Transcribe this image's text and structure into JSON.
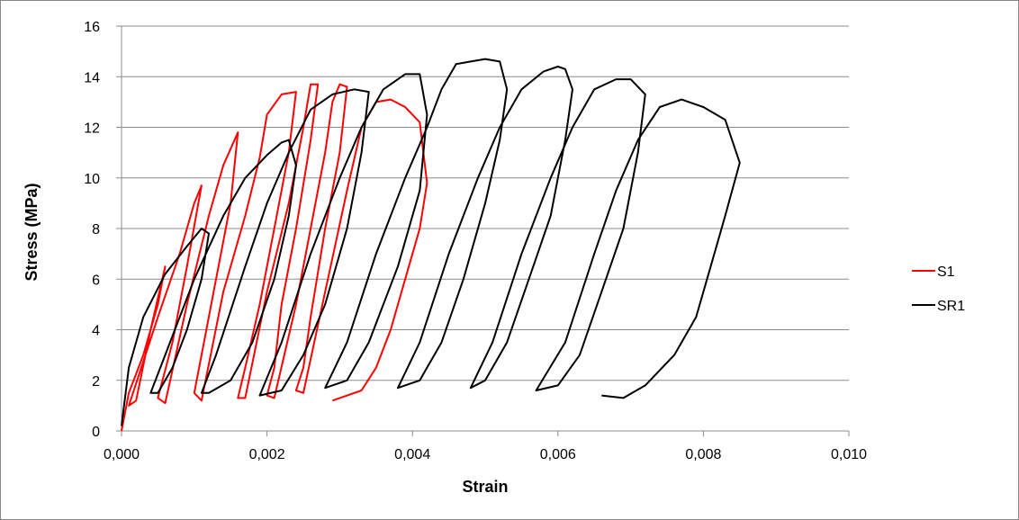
{
  "chart_data": {
    "type": "line",
    "xlabel": "Strain",
    "ylabel": "Stress (MPa)",
    "xlim": [
      0,
      0.01
    ],
    "ylim": [
      0,
      16
    ],
    "x_ticks": [
      "0,000",
      "0,002",
      "0,004",
      "0,006",
      "0,008",
      "0,010"
    ],
    "y_ticks": [
      "0",
      "2",
      "4",
      "6",
      "8",
      "10",
      "12",
      "14",
      "16"
    ],
    "grid": "horizontal",
    "legend_position": "right",
    "series": [
      {
        "name": "S1",
        "color": "#ff0000",
        "points": [
          [
            0.0,
            0.0
          ],
          [
            0.0001,
            1.5
          ],
          [
            0.0003,
            3.0
          ],
          [
            0.0005,
            5.0
          ],
          [
            0.0006,
            6.5
          ],
          [
            0.0004,
            4.0
          ],
          [
            0.0002,
            1.2
          ],
          [
            0.0001,
            1.0
          ],
          [
            0.0005,
            4.5
          ],
          [
            0.0008,
            7.0
          ],
          [
            0.001,
            9.0
          ],
          [
            0.0011,
            9.7
          ],
          [
            0.0009,
            6.5
          ],
          [
            0.0007,
            3.5
          ],
          [
            0.0005,
            1.3
          ],
          [
            0.0006,
            1.1
          ],
          [
            0.0009,
            5.0
          ],
          [
            0.0012,
            8.5
          ],
          [
            0.0014,
            10.5
          ],
          [
            0.0016,
            11.8
          ],
          [
            0.0015,
            9.0
          ],
          [
            0.0013,
            6.0
          ],
          [
            0.0011,
            3.0
          ],
          [
            0.001,
            1.5
          ],
          [
            0.0011,
            1.2
          ],
          [
            0.0014,
            5.5
          ],
          [
            0.0017,
            8.5
          ],
          [
            0.0019,
            10.8
          ],
          [
            0.002,
            12.5
          ],
          [
            0.0022,
            13.3
          ],
          [
            0.0024,
            13.4
          ],
          [
            0.0023,
            11.0
          ],
          [
            0.0021,
            8.0
          ],
          [
            0.0019,
            5.0
          ],
          [
            0.0017,
            2.5
          ],
          [
            0.0016,
            1.3
          ],
          [
            0.0017,
            1.3
          ],
          [
            0.002,
            5.5
          ],
          [
            0.0023,
            9.0
          ],
          [
            0.0025,
            12.0
          ],
          [
            0.0026,
            13.7
          ],
          [
            0.0027,
            13.7
          ],
          [
            0.0026,
            11.5
          ],
          [
            0.0024,
            8.0
          ],
          [
            0.0022,
            5.0
          ],
          [
            0.0021,
            2.5
          ],
          [
            0.002,
            1.4
          ],
          [
            0.0021,
            1.3
          ],
          [
            0.0024,
            5.0
          ],
          [
            0.0026,
            8.0
          ],
          [
            0.0028,
            11.0
          ],
          [
            0.0029,
            13.0
          ],
          [
            0.003,
            13.7
          ],
          [
            0.0031,
            13.6
          ],
          [
            0.003,
            11.0
          ],
          [
            0.0028,
            8.0
          ],
          [
            0.0026,
            4.5
          ],
          [
            0.0025,
            2.5
          ],
          [
            0.0024,
            1.6
          ],
          [
            0.0025,
            1.5
          ],
          [
            0.0028,
            5.5
          ],
          [
            0.0031,
            9.5
          ],
          [
            0.0033,
            12.0
          ],
          [
            0.0035,
            13.0
          ],
          [
            0.0037,
            13.1
          ],
          [
            0.0039,
            12.8
          ],
          [
            0.0041,
            12.2
          ],
          [
            0.0042,
            9.8
          ],
          [
            0.0041,
            8.0
          ],
          [
            0.0039,
            6.0
          ],
          [
            0.0037,
            4.0
          ],
          [
            0.0035,
            2.5
          ],
          [
            0.0033,
            1.6
          ],
          [
            0.003,
            1.3
          ],
          [
            0.0029,
            1.2
          ]
        ]
      },
      {
        "name": "SR1",
        "color": "#000000",
        "points": [
          [
            0.0,
            0.2
          ],
          [
            0.0001,
            2.5
          ],
          [
            0.0003,
            4.5
          ],
          [
            0.0006,
            6.2
          ],
          [
            0.0009,
            7.3
          ],
          [
            0.0011,
            8.0
          ],
          [
            0.0012,
            7.8
          ],
          [
            0.0011,
            6.0
          ],
          [
            0.0009,
            4.0
          ],
          [
            0.0007,
            2.5
          ],
          [
            0.0005,
            1.5
          ],
          [
            0.0004,
            1.5
          ],
          [
            0.0006,
            3.0
          ],
          [
            0.001,
            6.0
          ],
          [
            0.0014,
            8.5
          ],
          [
            0.0017,
            10.0
          ],
          [
            0.002,
            10.9
          ],
          [
            0.0022,
            11.4
          ],
          [
            0.0023,
            11.5
          ],
          [
            0.0024,
            10.5
          ],
          [
            0.0023,
            8.5
          ],
          [
            0.0021,
            6.0
          ],
          [
            0.0018,
            3.5
          ],
          [
            0.0015,
            2.0
          ],
          [
            0.0012,
            1.5
          ],
          [
            0.0011,
            1.5
          ],
          [
            0.0013,
            3.0
          ],
          [
            0.0017,
            6.5
          ],
          [
            0.002,
            9.0
          ],
          [
            0.0023,
            11.0
          ],
          [
            0.0026,
            12.7
          ],
          [
            0.0029,
            13.3
          ],
          [
            0.0032,
            13.5
          ],
          [
            0.0034,
            13.4
          ],
          [
            0.0033,
            11.0
          ],
          [
            0.0031,
            8.0
          ],
          [
            0.0028,
            5.0
          ],
          [
            0.0025,
            3.0
          ],
          [
            0.0022,
            1.6
          ],
          [
            0.0019,
            1.4
          ],
          [
            0.0022,
            3.5
          ],
          [
            0.0026,
            7.0
          ],
          [
            0.003,
            10.0
          ],
          [
            0.0033,
            12.0
          ],
          [
            0.0036,
            13.5
          ],
          [
            0.0039,
            14.1
          ],
          [
            0.0041,
            14.1
          ],
          [
            0.0042,
            12.5
          ],
          [
            0.0041,
            9.5
          ],
          [
            0.0038,
            6.5
          ],
          [
            0.0034,
            3.5
          ],
          [
            0.0031,
            2.0
          ],
          [
            0.0028,
            1.7
          ],
          [
            0.0031,
            3.5
          ],
          [
            0.0035,
            7.0
          ],
          [
            0.0039,
            10.0
          ],
          [
            0.0042,
            12.0
          ],
          [
            0.0044,
            13.5
          ],
          [
            0.0046,
            14.5
          ],
          [
            0.0048,
            14.6
          ],
          [
            0.005,
            14.7
          ],
          [
            0.0052,
            14.6
          ],
          [
            0.0053,
            13.5
          ],
          [
            0.0052,
            11.5
          ],
          [
            0.005,
            9.0
          ],
          [
            0.0047,
            6.0
          ],
          [
            0.0044,
            3.5
          ],
          [
            0.0041,
            2.0
          ],
          [
            0.0038,
            1.7
          ],
          [
            0.0041,
            3.5
          ],
          [
            0.0045,
            7.0
          ],
          [
            0.0049,
            10.0
          ],
          [
            0.0052,
            12.0
          ],
          [
            0.0055,
            13.5
          ],
          [
            0.0058,
            14.2
          ],
          [
            0.006,
            14.4
          ],
          [
            0.0061,
            14.3
          ],
          [
            0.0062,
            13.5
          ],
          [
            0.0061,
            11.5
          ],
          [
            0.0059,
            8.5
          ],
          [
            0.0056,
            6.0
          ],
          [
            0.0053,
            3.5
          ],
          [
            0.005,
            2.0
          ],
          [
            0.0048,
            1.7
          ],
          [
            0.0051,
            3.5
          ],
          [
            0.0055,
            7.0
          ],
          [
            0.0059,
            10.0
          ],
          [
            0.0062,
            12.0
          ],
          [
            0.0065,
            13.5
          ],
          [
            0.0068,
            13.9
          ],
          [
            0.007,
            13.9
          ],
          [
            0.0072,
            13.3
          ],
          [
            0.0071,
            11.0
          ],
          [
            0.0069,
            8.0
          ],
          [
            0.0066,
            5.5
          ],
          [
            0.0063,
            3.0
          ],
          [
            0.006,
            1.8
          ],
          [
            0.0057,
            1.6
          ],
          [
            0.0061,
            3.5
          ],
          [
            0.0065,
            7.0
          ],
          [
            0.0068,
            9.5
          ],
          [
            0.0071,
            11.5
          ],
          [
            0.0074,
            12.8
          ],
          [
            0.0077,
            13.1
          ],
          [
            0.008,
            12.8
          ],
          [
            0.0083,
            12.3
          ],
          [
            0.0085,
            10.6
          ],
          [
            0.0083,
            8.5
          ],
          [
            0.0081,
            6.5
          ],
          [
            0.0079,
            4.5
          ],
          [
            0.0076,
            3.0
          ],
          [
            0.0072,
            1.8
          ],
          [
            0.0069,
            1.3
          ],
          [
            0.0066,
            1.4
          ]
        ]
      }
    ]
  }
}
